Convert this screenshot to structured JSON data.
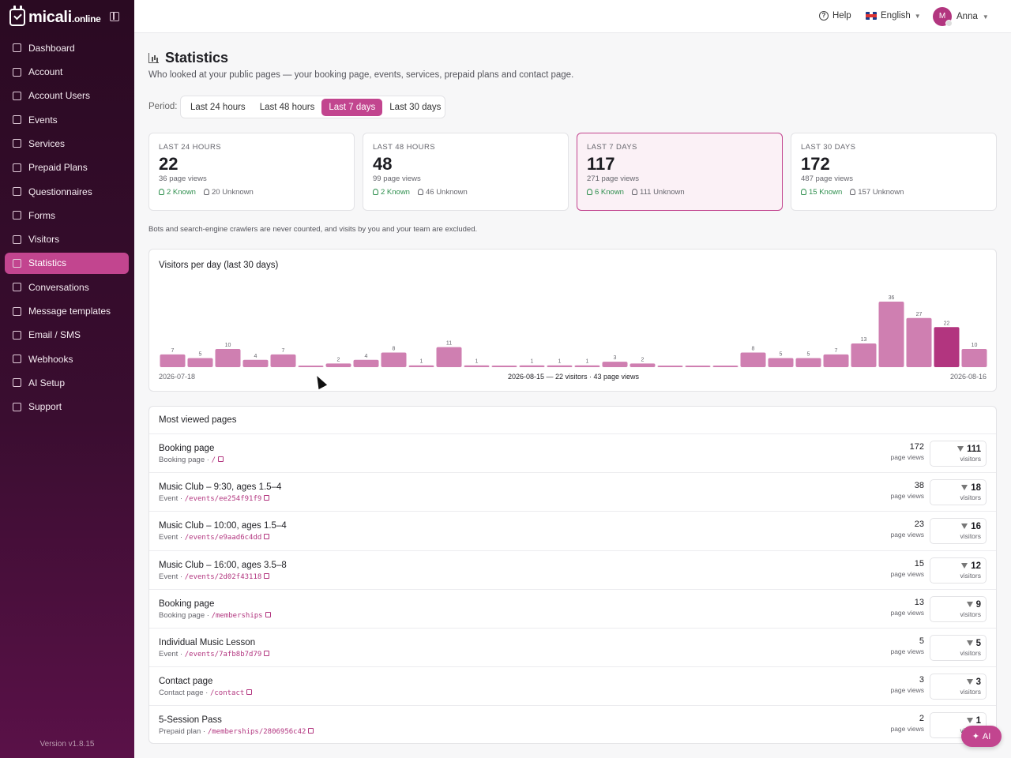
{
  "brand": {
    "name": "micali",
    "suffix": ".online"
  },
  "sidebar": {
    "items": [
      {
        "label": "Dashboard",
        "icon": "grid-icon",
        "active": false
      },
      {
        "label": "Account",
        "icon": "building-icon",
        "active": false
      },
      {
        "label": "Account Users",
        "icon": "users-icon",
        "active": false
      },
      {
        "label": "Events",
        "icon": "calendar-icon",
        "active": false
      },
      {
        "label": "Services",
        "icon": "scissors-icon",
        "active": false
      },
      {
        "label": "Prepaid Plans",
        "icon": "ticket-icon",
        "active": false
      },
      {
        "label": "Questionnaires",
        "icon": "clipboard-icon",
        "active": false
      },
      {
        "label": "Forms",
        "icon": "form-icon",
        "active": false
      },
      {
        "label": "Visitors",
        "icon": "visitor-icon",
        "active": false
      },
      {
        "label": "Statistics",
        "icon": "bar-chart-icon",
        "active": true
      },
      {
        "label": "Conversations",
        "icon": "chat-icon",
        "active": false
      },
      {
        "label": "Message templates",
        "icon": "message-icon",
        "active": false
      },
      {
        "label": "Email / SMS",
        "icon": "mail-icon",
        "active": false
      },
      {
        "label": "Webhooks",
        "icon": "webhook-icon",
        "active": false
      },
      {
        "label": "AI Setup",
        "icon": "sparkles-icon",
        "active": false
      },
      {
        "label": "Support",
        "icon": "lifebuoy-icon",
        "active": false
      }
    ],
    "version": "Version v1.8.15"
  },
  "topbar": {
    "help": "Help",
    "language": "English",
    "user_name": "Anna",
    "user_initial": "M"
  },
  "page": {
    "title": "Statistics",
    "subtitle": "Who looked at your public pages — your booking page, events, services, prepaid plans and contact page.",
    "period_label": "Period:",
    "periods": [
      "Last 24 hours",
      "Last 48 hours",
      "Last 7 days",
      "Last 30 days"
    ],
    "active_period": 2,
    "note": "Bots and search-engine crawlers are never counted, and visits by you and your team are excluded."
  },
  "cards": [
    {
      "label": "LAST 24 HOURS",
      "value": "22",
      "views": "36 page views",
      "known": "2 Known",
      "unknown": "20 Unknown"
    },
    {
      "label": "LAST 48 HOURS",
      "value": "48",
      "views": "99 page views",
      "known": "2 Known",
      "unknown": "46 Unknown"
    },
    {
      "label": "LAST 7 DAYS",
      "value": "117",
      "views": "271 page views",
      "known": "6 Known",
      "unknown": "111 Unknown"
    },
    {
      "label": "LAST 30 DAYS",
      "value": "172",
      "views": "487 page views",
      "known": "15 Known",
      "unknown": "157 Unknown"
    }
  ],
  "chart_data": {
    "type": "bar",
    "title": "Visitors per day (last 30 days)",
    "x_start": "2026-07-18",
    "x_end": "2026-08-16",
    "hover_label": "2026-08-15 — 22 visitors · 43 page views",
    "highlight_index": 28,
    "values": [
      7,
      5,
      10,
      4,
      7,
      0,
      2,
      4,
      8,
      1,
      11,
      1,
      0,
      1,
      1,
      1,
      3,
      2,
      0,
      0,
      0,
      8,
      5,
      5,
      7,
      13,
      36,
      27,
      22,
      10
    ],
    "show_labels": [
      true,
      true,
      true,
      true,
      true,
      false,
      true,
      true,
      true,
      true,
      true,
      true,
      false,
      true,
      true,
      true,
      true,
      true,
      false,
      false,
      false,
      true,
      true,
      true,
      true,
      true,
      true,
      true,
      true,
      true
    ],
    "bar_color": "#cf7fb1",
    "highlight_color": "#b2357f",
    "ylim": [
      0,
      36
    ]
  },
  "pages": {
    "title": "Most viewed pages",
    "views_label": "page views",
    "visitors_label": "visitors",
    "rows": [
      {
        "name": "Booking page",
        "type": "Booking page",
        "path": "/",
        "views": "172",
        "visitors": "111"
      },
      {
        "name": "Music Club – 9:30, ages 1.5–4",
        "type": "Event",
        "path": "/events/ee254f91f9",
        "views": "38",
        "visitors": "18"
      },
      {
        "name": "Music Club – 10:00, ages 1.5–4",
        "type": "Event",
        "path": "/events/e9aad6c4dd",
        "views": "23",
        "visitors": "16"
      },
      {
        "name": "Music Club – 16:00, ages 3.5–8",
        "type": "Event",
        "path": "/events/2d02f43118",
        "views": "15",
        "visitors": "12"
      },
      {
        "name": "Booking page",
        "type": "Booking page",
        "path": "/memberships",
        "views": "13",
        "visitors": "9"
      },
      {
        "name": "Individual Music Lesson",
        "type": "Event",
        "path": "/events/7afb8b7d79",
        "views": "5",
        "visitors": "5"
      },
      {
        "name": "Contact page",
        "type": "Contact page",
        "path": "/contact",
        "views": "3",
        "visitors": "3"
      },
      {
        "name": "5-Session Pass",
        "type": "Prepaid plan",
        "path": "/memberships/2806956c42",
        "views": "2",
        "visitors": "1"
      }
    ]
  },
  "ai_button": "AI"
}
